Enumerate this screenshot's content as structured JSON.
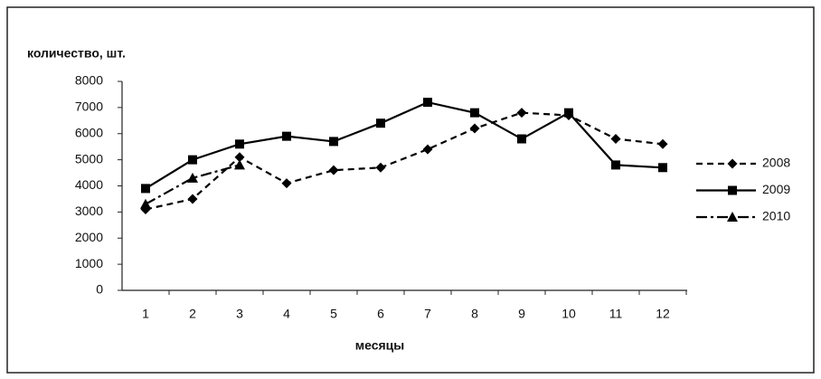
{
  "chart_data": {
    "type": "line",
    "y_label": "количество, шт.",
    "x_label": "месяцы",
    "categories": [
      "1",
      "2",
      "3",
      "4",
      "5",
      "6",
      "7",
      "8",
      "9",
      "10",
      "11",
      "12"
    ],
    "series": [
      {
        "name": "2008",
        "color": "#000000",
        "dash": "7,5",
        "marker": "diamond",
        "values": [
          3100,
          3500,
          5100,
          4100,
          4600,
          4700,
          5400,
          6200,
          6800,
          6700,
          5800,
          5600
        ]
      },
      {
        "name": "2009",
        "color": "#000000",
        "dash": "none",
        "marker": "square",
        "values": [
          3900,
          5000,
          5600,
          5900,
          5700,
          6400,
          7200,
          6800,
          5800,
          6800,
          4800,
          4700
        ]
      },
      {
        "name": "2010",
        "color": "#000000",
        "dash": "12,4,3,4",
        "marker": "triangle",
        "values": [
          3300,
          4300,
          4800,
          null,
          null,
          null,
          null,
          null,
          null,
          null,
          null,
          null
        ]
      }
    ],
    "ylim": [
      0,
      8000
    ],
    "yticks": [
      0,
      1000,
      2000,
      3000,
      4000,
      5000,
      6000,
      7000,
      8000
    ],
    "legend": "right"
  }
}
